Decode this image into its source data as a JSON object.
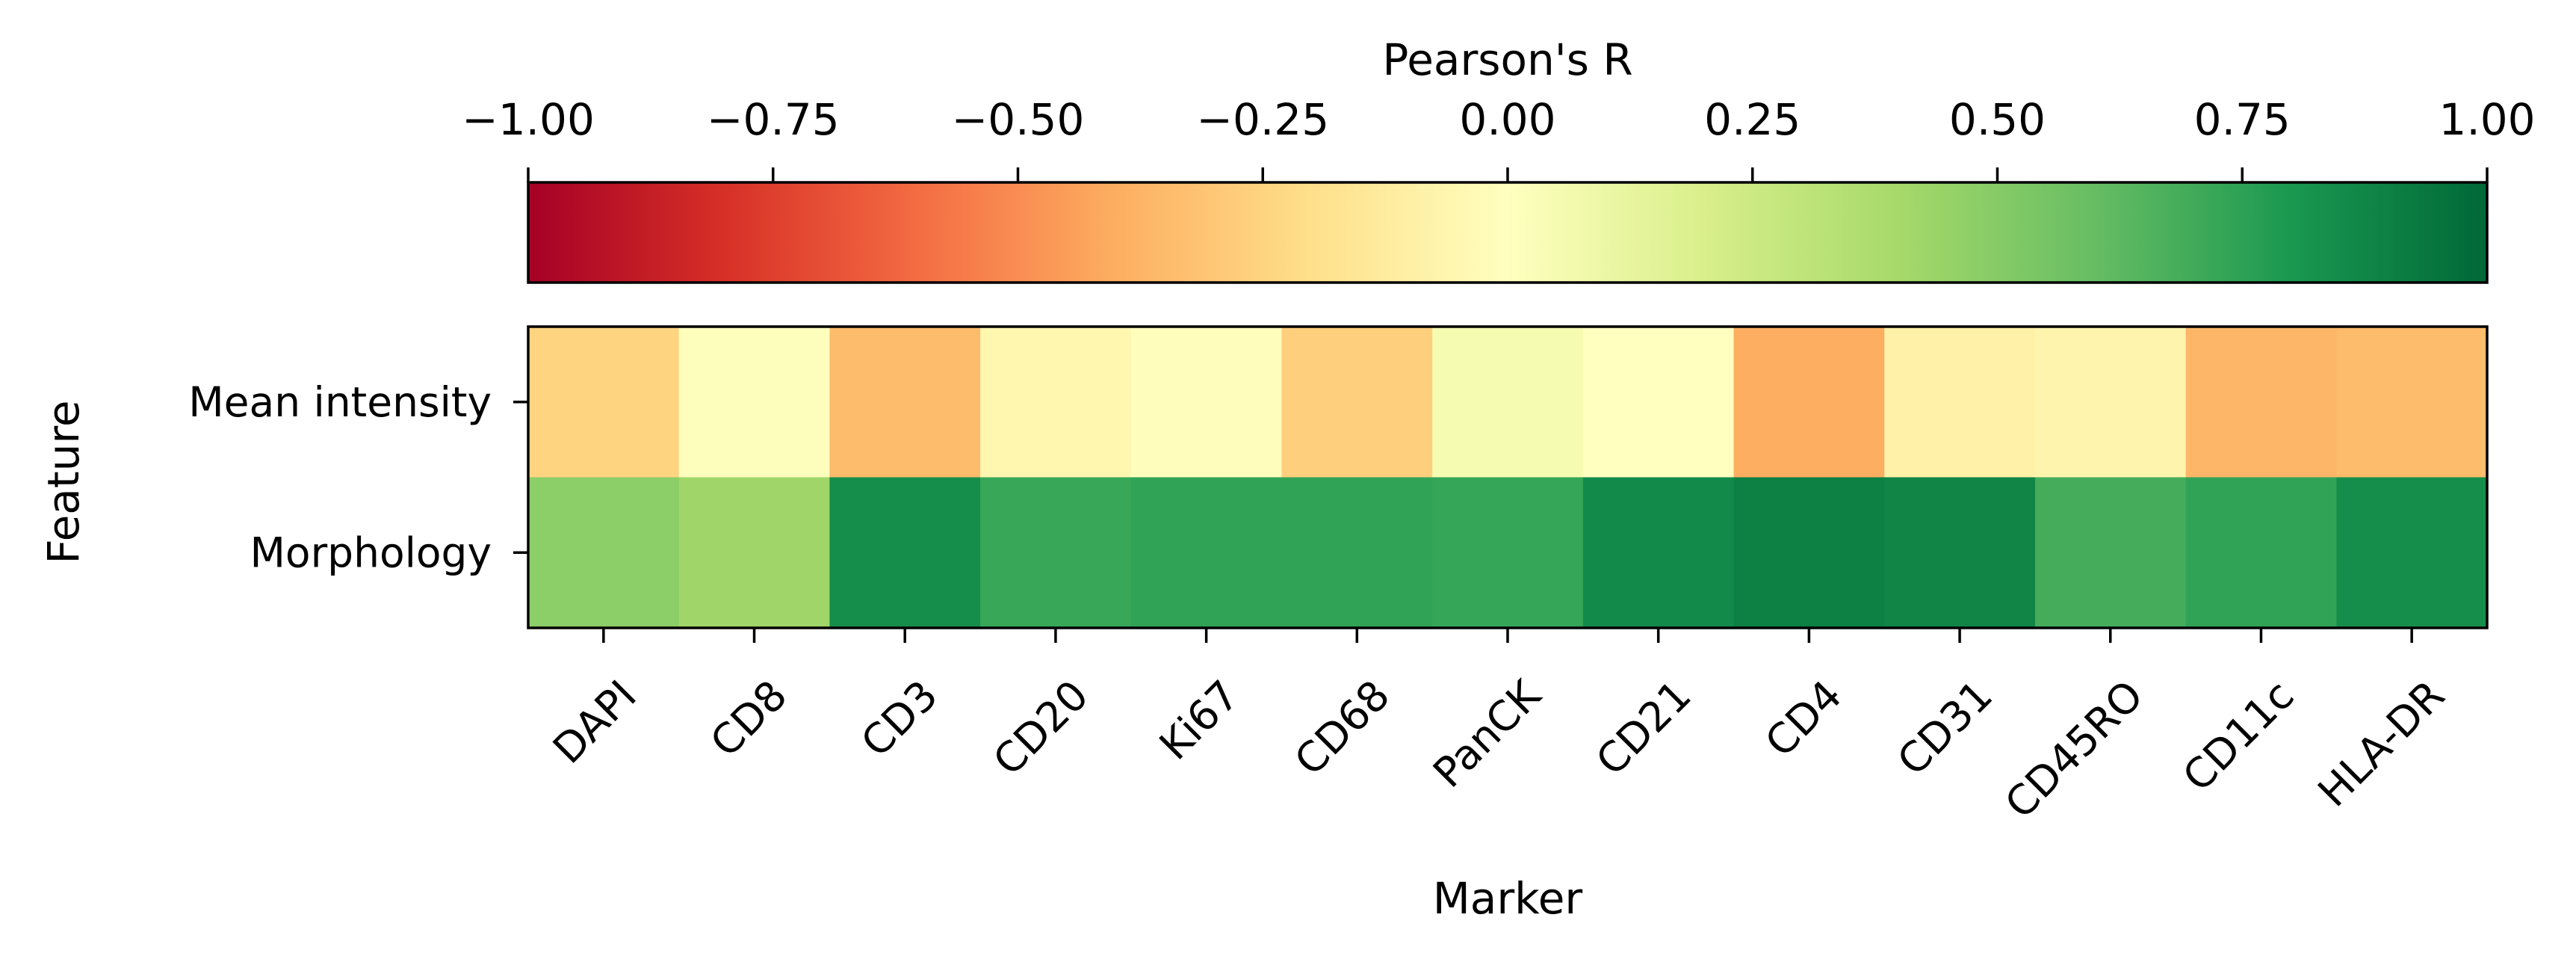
{
  "chart_data": {
    "type": "heatmap",
    "xlabel": "Marker",
    "ylabel": "Feature",
    "x": [
      "DAPI",
      "CD8",
      "CD3",
      "CD20",
      "Ki67",
      "CD68",
      "PanCK",
      "CD21",
      "CD4",
      "CD31",
      "CD45RO",
      "CD11c",
      "HLA-DR"
    ],
    "y": [
      "Mean intensity",
      "Morphology"
    ],
    "values": [
      [
        -0.25,
        0.01,
        -0.35,
        -0.06,
        -0.01,
        -0.27,
        0.05,
        0.0,
        -0.4,
        -0.09,
        -0.07,
        -0.37,
        -0.35
      ],
      [
        0.48,
        0.42,
        0.84,
        0.72,
        0.74,
        0.74,
        0.73,
        0.86,
        0.9,
        0.88,
        0.69,
        0.74,
        0.84
      ]
    ],
    "colorbar": {
      "label": "Pearson's R",
      "vmin": -1.0,
      "vmax": 1.0,
      "ticks": [
        "−1.00",
        "−0.75",
        "−0.50",
        "−0.25",
        "0.00",
        "0.25",
        "0.50",
        "0.75",
        "1.00"
      ],
      "tick_values": [
        -1.0,
        -0.75,
        -0.5,
        -0.25,
        0.0,
        0.25,
        0.5,
        0.75,
        1.0
      ],
      "placement": "top",
      "colormap": "RdYlGn",
      "colormap_stops": [
        "#a50026",
        "#d73027",
        "#f46d43",
        "#fdae61",
        "#fee08b",
        "#ffffbf",
        "#d9ef8b",
        "#a6d96a",
        "#66bd63",
        "#1a9850",
        "#006837"
      ]
    }
  }
}
